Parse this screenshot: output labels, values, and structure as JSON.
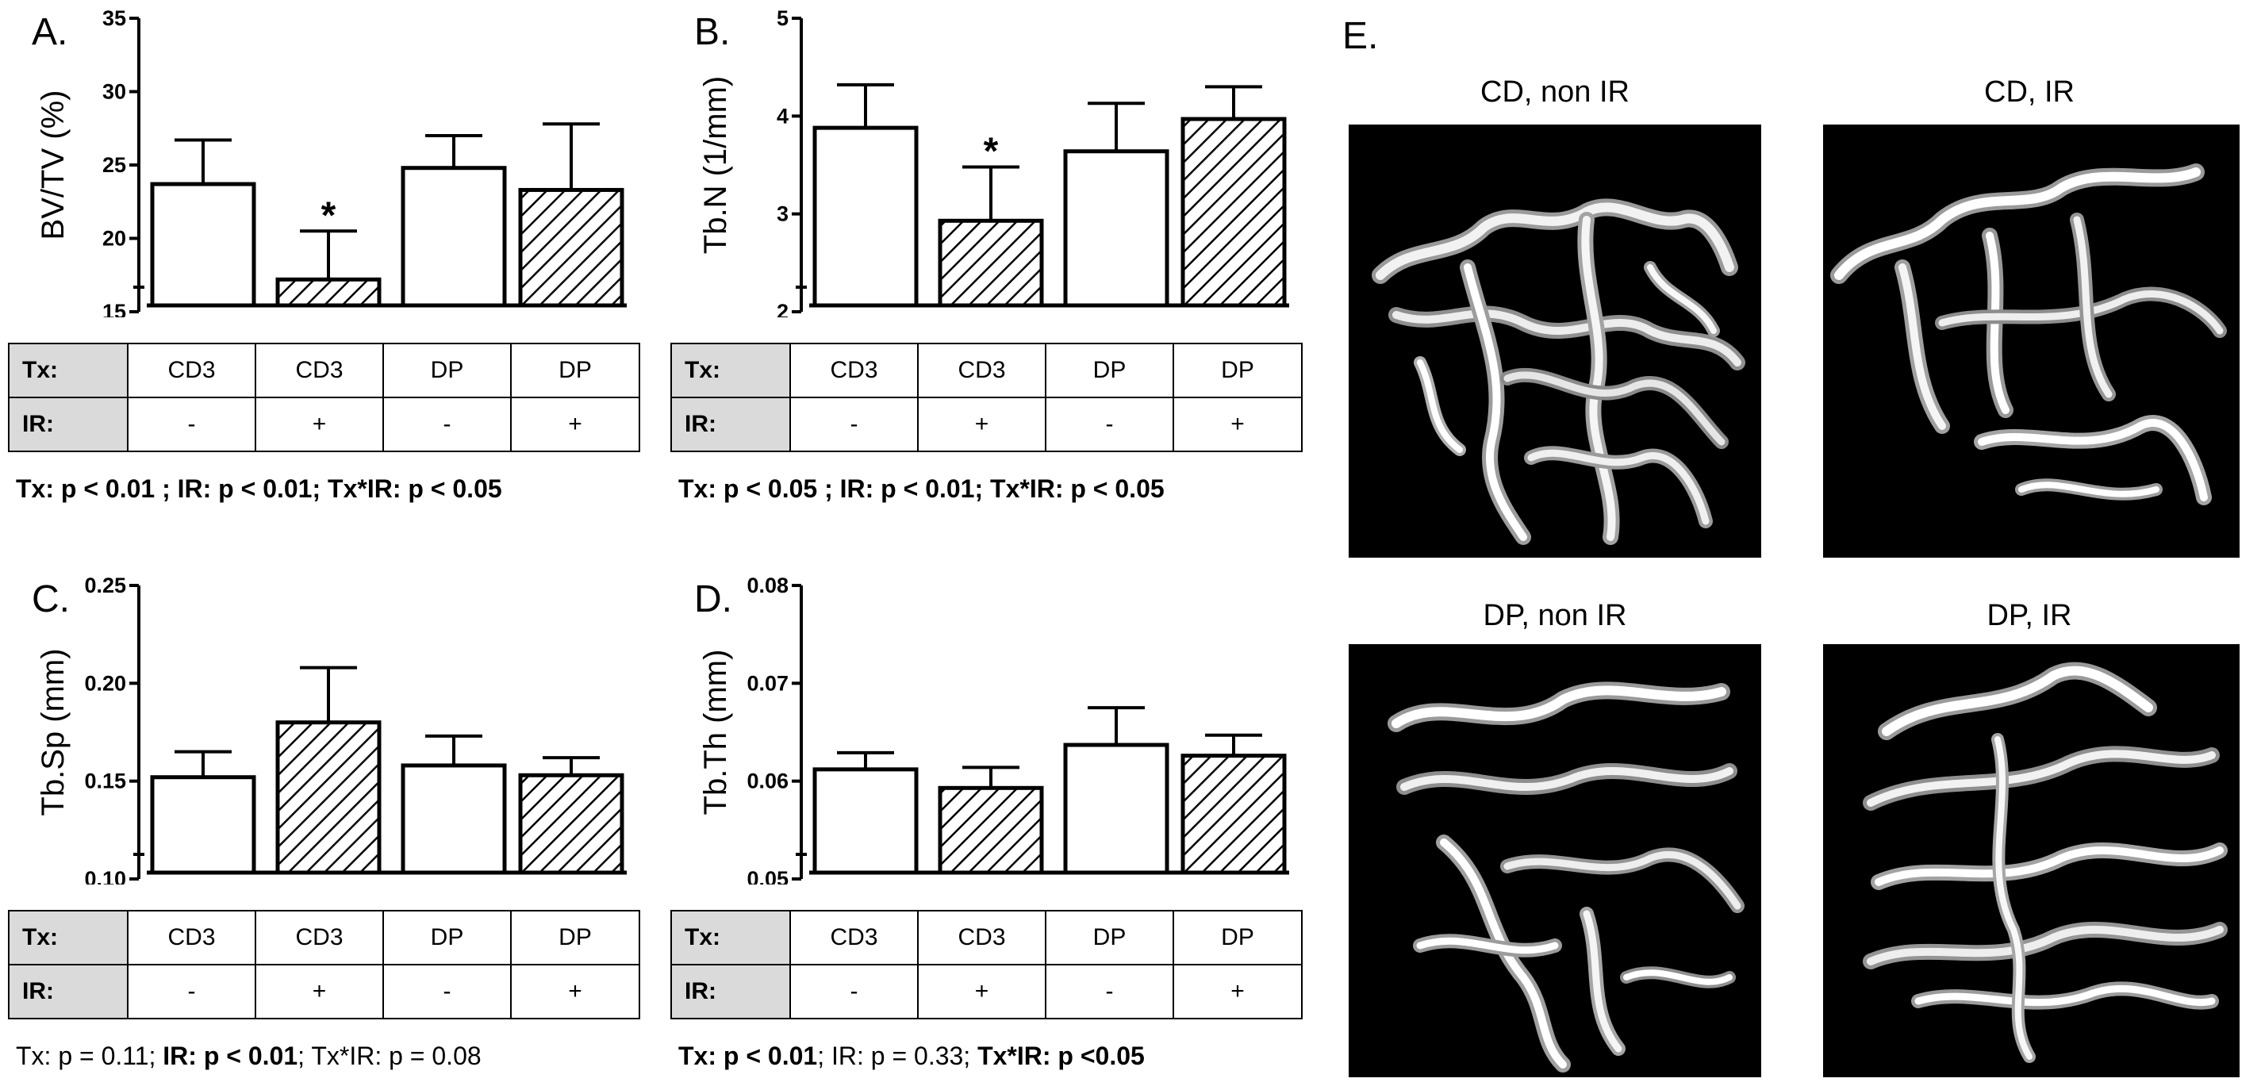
{
  "chart_data": [
    {
      "panel": "A.",
      "type": "bar",
      "ylabel": "BV/TV (%)",
      "ylim": [
        15,
        35
      ],
      "yticks": [
        "15",
        "20",
        "25",
        "30",
        "35"
      ],
      "values": [
        23.7,
        17.2,
        24.8,
        23.3
      ],
      "errors": [
        3.0,
        3.3,
        2.2,
        4.5
      ],
      "hatched": [
        false,
        true,
        false,
        true
      ],
      "significant": [
        "",
        "*",
        "",
        ""
      ],
      "table": {
        "tx_label": "Tx:",
        "ir_label": "IR:",
        "tx": [
          "CD3",
          "CD3",
          "DP",
          "DP"
        ],
        "ir": [
          "-",
          "+",
          "-",
          "+"
        ]
      },
      "stats": [
        {
          "text": "Tx: p < 0.01 ; IR: p < 0.01; Tx*IR: p < 0.05",
          "bold": true
        }
      ]
    },
    {
      "panel": "B.",
      "type": "bar",
      "ylabel": "Tb.N (1/mm)",
      "ylim": [
        2,
        5
      ],
      "yticks": [
        "2",
        "3",
        "4",
        "5"
      ],
      "values": [
        3.88,
        2.93,
        3.64,
        3.97
      ],
      "errors": [
        0.44,
        0.55,
        0.49,
        0.33
      ],
      "hatched": [
        false,
        true,
        false,
        true
      ],
      "significant": [
        "",
        "*",
        "",
        ""
      ],
      "table": {
        "tx_label": "Tx:",
        "ir_label": "IR:",
        "tx": [
          "CD3",
          "CD3",
          "DP",
          "DP"
        ],
        "ir": [
          "-",
          "+",
          "-",
          "+"
        ]
      },
      "stats": [
        {
          "text": "Tx: p < 0.05 ; IR: p < 0.01; Tx*IR: p < 0.05",
          "bold": true
        }
      ]
    },
    {
      "panel": "C.",
      "type": "bar",
      "ylabel": "Tb.Sp (mm)",
      "ylim": [
        0.1,
        0.25
      ],
      "yticks": [
        "0.10",
        "0.15",
        "0.20",
        "0.25"
      ],
      "values": [
        0.152,
        0.18,
        0.158,
        0.153
      ],
      "errors": [
        0.013,
        0.028,
        0.015,
        0.009
      ],
      "hatched": [
        false,
        true,
        false,
        true
      ],
      "significant": [
        "",
        "",
        "",
        ""
      ],
      "table": {
        "tx_label": "Tx:",
        "ir_label": "IR:",
        "tx": [
          "CD3",
          "CD3",
          "DP",
          "DP"
        ],
        "ir": [
          "-",
          "+",
          "-",
          "+"
        ]
      },
      "stats": [
        {
          "text": "Tx: p = 0.11; ",
          "bold": false
        },
        {
          "text": "IR: p < 0.01",
          "bold": true
        },
        {
          "text": "; Tx*IR: p = 0.08",
          "bold": false
        }
      ]
    },
    {
      "panel": "D.",
      "type": "bar",
      "ylabel": "Tb.Th (mm)",
      "ylim": [
        0.05,
        0.08
      ],
      "yticks": [
        "0.05",
        "0.06",
        "0.07",
        "0.08"
      ],
      "values": [
        0.0612,
        0.0593,
        0.0637,
        0.0626
      ],
      "errors": [
        0.0017,
        0.0021,
        0.0038,
        0.0021
      ],
      "hatched": [
        false,
        true,
        false,
        true
      ],
      "significant": [
        "",
        "",
        "",
        ""
      ],
      "table": {
        "tx_label": "Tx:",
        "ir_label": "IR:",
        "tx": [
          "CD3",
          "CD3",
          "DP",
          "DP"
        ],
        "ir": [
          "-",
          "+",
          "-",
          "+"
        ]
      },
      "stats": [
        {
          "text": "Tx: p < 0.01",
          "bold": true
        },
        {
          "text": "; IR: p = 0.33; ",
          "bold": false
        },
        {
          "text": "Tx*IR: p <0.05",
          "bold": true
        }
      ]
    }
  ],
  "panel_e": {
    "letter": "E.",
    "images": [
      {
        "title": "CD, non IR",
        "icon": "bone-microct-image"
      },
      {
        "title": "CD, IR",
        "icon": "bone-microct-image"
      },
      {
        "title": "DP, non IR",
        "icon": "bone-microct-image"
      },
      {
        "title": "DP, IR",
        "icon": "bone-microct-image"
      }
    ]
  }
}
